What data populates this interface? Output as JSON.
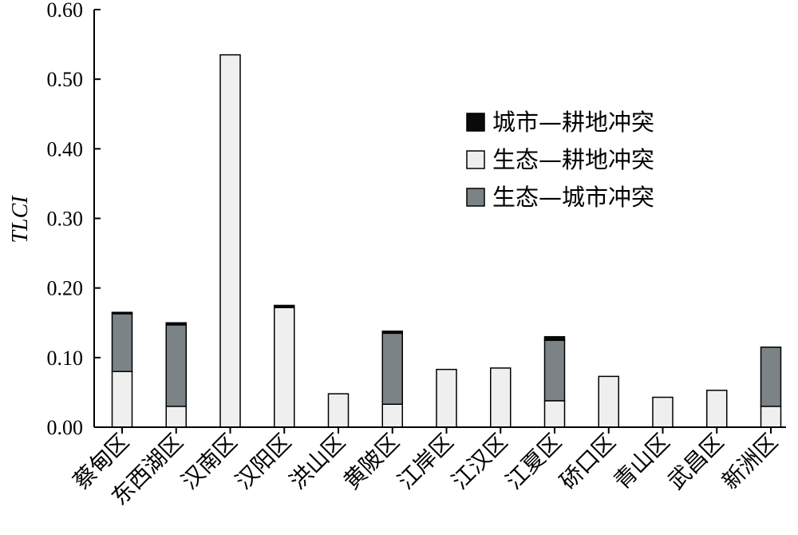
{
  "chart_data": {
    "type": "bar",
    "stacked": true,
    "ylabel": "TLCI",
    "ylim": [
      0,
      0.6
    ],
    "yticks": [
      "0.00",
      "0.10",
      "0.20",
      "0.30",
      "0.40",
      "0.50",
      "0.60"
    ],
    "grid": false,
    "legend_position": "top-right",
    "categories": [
      "蔡甸区",
      "东西湖区",
      "汉南区",
      "汉阳区",
      "洪山区",
      "黄陂区",
      "江岸区",
      "江汉区",
      "江夏区",
      "硚口区",
      "青山区",
      "武昌区",
      "新洲区"
    ],
    "series": [
      {
        "name": "生态—耕地冲突",
        "color": "#efefef",
        "values": [
          0.08,
          0.03,
          0.535,
          0.172,
          0.048,
          0.033,
          0.083,
          0.085,
          0.038,
          0.073,
          0.043,
          0.053,
          0.03
        ]
      },
      {
        "name": "生态—城市冲突",
        "color": "#7b8387",
        "values": [
          0.083,
          0.117,
          0.0,
          0.0,
          0.0,
          0.102,
          0.0,
          0.0,
          0.087,
          0.0,
          0.0,
          0.0,
          0.085
        ]
      },
      {
        "name": "城市—耕地冲突",
        "color": "#0a0a0a",
        "values": [
          0.002,
          0.003,
          0.0,
          0.003,
          0.0,
          0.003,
          0.0,
          0.0,
          0.005,
          0.0,
          0.0,
          0.0,
          0.0
        ]
      }
    ],
    "legend_order": [
      "城市—耕地冲突",
      "生态—耕地冲突",
      "生态—城市冲突"
    ]
  }
}
